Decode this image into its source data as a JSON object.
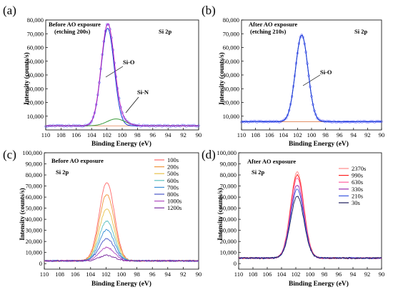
{
  "chart_data": [
    {
      "panel": "(a)",
      "type": "line",
      "xlabel": "Binding Energy (eV)",
      "ylabel": "Intensity (counts/s)",
      "xlim": [
        110,
        90
      ],
      "ylim": [
        0,
        80000
      ],
      "xticks": [
        110,
        108,
        106,
        104,
        102,
        100,
        98,
        96,
        94,
        92,
        90
      ],
      "yticks": [
        10000,
        20000,
        30000,
        40000,
        50000,
        60000,
        70000,
        80000
      ],
      "ytick_labels": [
        "10,000",
        "20,000",
        "30,000",
        "40,000",
        "50,000",
        "60,000",
        "70,000",
        "80,000"
      ],
      "notes": [
        "Before AO exposure",
        "(etching 200s)",
        "Si 2p"
      ],
      "annotations": [
        {
          "text": "Si-O",
          "x": 100.8,
          "y": 48000,
          "arrow_to": [
            102.3,
            40000
          ]
        },
        {
          "text": "Si-N",
          "x": 99.6,
          "y": 20000,
          "arrow_to": [
            101.0,
            8000
          ]
        }
      ],
      "baseline": 3000,
      "peaks": [
        {
          "component": "Si-O",
          "center": 101.9,
          "height": 71000,
          "fwhm": 2.0,
          "color": "#1d3fd6"
        },
        {
          "component": "Si-N",
          "center": 100.8,
          "height": 5000,
          "fwhm": 2.8,
          "color": "#3a9b3a"
        }
      ],
      "envelope_color": "#b020c0",
      "raw_marker_color": "#5a5aff"
    },
    {
      "panel": "(b)",
      "type": "line",
      "xlabel": "Binding Energy (eV)",
      "ylabel": "Intensity (counts/s)",
      "xlim": [
        110,
        90
      ],
      "ylim": [
        0,
        80000
      ],
      "xticks": [
        110,
        108,
        106,
        104,
        102,
        100,
        98,
        96,
        94,
        92,
        90
      ],
      "yticks": [
        10000,
        20000,
        30000,
        40000,
        50000,
        60000,
        70000,
        80000
      ],
      "ytick_labels": [
        "10,000",
        "20,000",
        "30,000",
        "40,000",
        "50,000",
        "60,000",
        "70,000",
        "80,000"
      ],
      "notes": [
        "After AO exposure",
        "(etching 210s)",
        "Si 2p"
      ],
      "annotations": [
        {
          "text": "Si-O",
          "x": 100.4,
          "y": 37000,
          "arrow_to": [
            101.7,
            28000
          ]
        }
      ],
      "baseline": 6000,
      "peaks": [
        {
          "component": "Si-O",
          "center": 101.4,
          "height": 63000,
          "fwhm": 2.1,
          "color": "#1d3fd6"
        }
      ],
      "envelope_color": "#1d3fd6",
      "raw_marker_color": "#5a5aff",
      "baseline_color": "#e08050"
    },
    {
      "panel": "(c)",
      "type": "line",
      "xlabel": "Binding Energy (eV)",
      "ylabel": "Intensity (counts/s)",
      "xlim": [
        110,
        90
      ],
      "ylim": [
        -5000,
        100000
      ],
      "xticks": [
        110,
        108,
        106,
        104,
        102,
        100,
        98,
        96,
        94,
        92,
        90
      ],
      "yticks": [
        0,
        10000,
        20000,
        30000,
        40000,
        50000,
        60000,
        70000,
        80000,
        90000,
        100000
      ],
      "ytick_labels": [
        "0",
        "10,000",
        "20,000",
        "30,000",
        "40,000",
        "50,000",
        "60,000",
        "70,000",
        "80,000",
        "90,000",
        "100,000"
      ],
      "notes": [
        "Before AO exposure",
        "Si 2p"
      ],
      "legend": "top-right",
      "baseline": 2500,
      "series": [
        {
          "name": "100s",
          "center": 101.9,
          "height": 71000,
          "fwhm": 2.3,
          "color": "#ff6a6a"
        },
        {
          "name": "200s",
          "center": 101.9,
          "height": 60000,
          "fwhm": 2.3,
          "color": "#f0963c"
        },
        {
          "name": "500s",
          "center": 101.9,
          "height": 47000,
          "fwhm": 2.3,
          "color": "#e8c24a"
        },
        {
          "name": "600s",
          "center": 101.9,
          "height": 36000,
          "fwhm": 2.3,
          "color": "#5cc0c0"
        },
        {
          "name": "700s",
          "center": 101.9,
          "height": 28000,
          "fwhm": 2.3,
          "color": "#3a8fd6"
        },
        {
          "name": "800s",
          "center": 101.9,
          "height": 20000,
          "fwhm": 2.3,
          "color": "#4a58c8"
        },
        {
          "name": "1000s",
          "center": 101.9,
          "height": 12000,
          "fwhm": 2.3,
          "color": "#b04cc0"
        },
        {
          "name": "1200s",
          "center": 101.9,
          "height": 5000,
          "fwhm": 2.3,
          "color": "#7a2aa0"
        }
      ]
    },
    {
      "panel": "(d)",
      "type": "line",
      "xlabel": "Binding Energy (eV)",
      "ylabel": "Intensity (counts/s)",
      "xlim": [
        110,
        90
      ],
      "ylim": [
        -5000,
        100000
      ],
      "xticks": [
        110,
        108,
        106,
        104,
        102,
        100,
        98,
        96,
        94,
        92,
        90
      ],
      "yticks": [
        0,
        10000,
        20000,
        30000,
        40000,
        50000,
        60000,
        70000,
        80000,
        90000,
        100000
      ],
      "ytick_labels": [
        "0",
        "10,000",
        "20,000",
        "30,000",
        "40,000",
        "50,000",
        "60,000",
        "70,000",
        "80,000",
        "90,000",
        "100,000"
      ],
      "notes": [
        "After AO exposure",
        "Si 2p"
      ],
      "legend": "top-right",
      "baseline": 5000,
      "series": [
        {
          "name": "2370s",
          "center": 101.8,
          "height": 78000,
          "fwhm": 2.2,
          "color": "#ff8a8a"
        },
        {
          "name": "990s",
          "center": 101.8,
          "height": 75000,
          "fwhm": 2.2,
          "color": "#ff2020"
        },
        {
          "name": "630s",
          "center": 101.8,
          "height": 72000,
          "fwhm": 2.2,
          "color": "#ff60a0"
        },
        {
          "name": "330s",
          "center": 101.8,
          "height": 66000,
          "fwhm": 2.2,
          "color": "#9a2ab0"
        },
        {
          "name": "210s",
          "center": 101.8,
          "height": 62000,
          "fwhm": 2.2,
          "color": "#3a58e0"
        },
        {
          "name": "30s",
          "center": 101.8,
          "height": 56000,
          "fwhm": 2.2,
          "color": "#1a1a5a"
        }
      ]
    }
  ]
}
